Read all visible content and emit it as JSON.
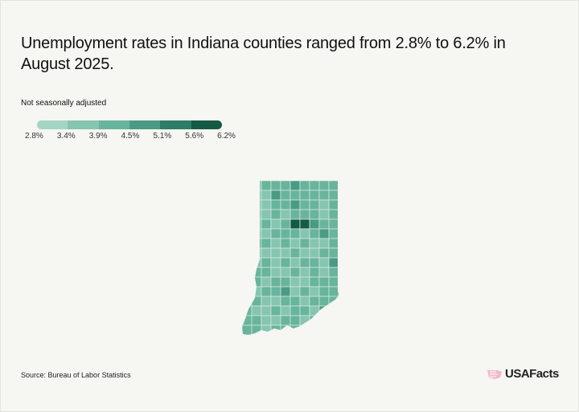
{
  "title": "Unemployment rates in Indiana counties ranged from 2.8% to 6.2% in August 2025.",
  "subtitle": "Not seasonally adjusted",
  "legend": {
    "ticks": [
      "2.8%",
      "3.4%",
      "3.9%",
      "4.5%",
      "5.1%",
      "5.6%",
      "6.2%"
    ],
    "colors": [
      "#a3d5c4",
      "#86c5b0",
      "#68b49c",
      "#4a9b83",
      "#2e7d66",
      "#155a45"
    ]
  },
  "map": {
    "region": "Indiana",
    "county_levels": [
      "4122232222",
      "4113222222",
      "2112232212",
      "1112122212",
      "2121255322",
      "2112221232",
      "1221212112",
      "2111121122",
      "2121212213",
      "1221121212",
      "2212211222",
      "3122312122",
      "2211221222",
      "2112122132",
      "2211221212",
      "2212221222"
    ]
  },
  "source": "Source: Bureau of Labor Statistics",
  "logo": {
    "text": "USAFacts",
    "color": "#f2b8cc"
  }
}
